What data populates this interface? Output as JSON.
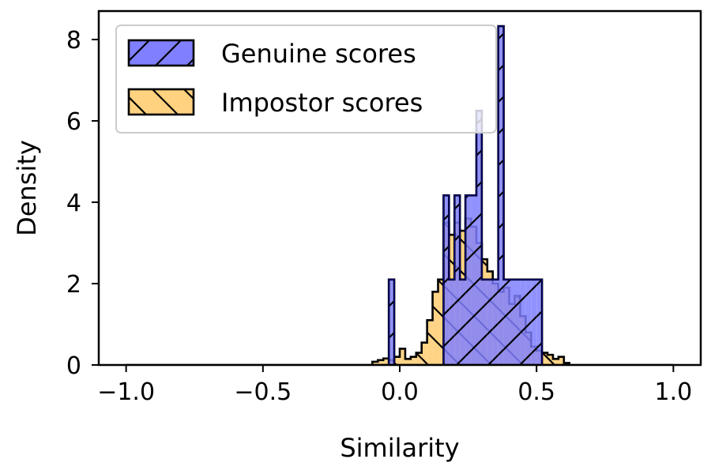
{
  "chart_data": {
    "type": "histogram",
    "title": "",
    "xlabel": "Similarity",
    "ylabel": "Density",
    "xlim": [
      -1.1,
      1.1
    ],
    "ylim": [
      0,
      8.7
    ],
    "xticks": [
      -1.0,
      -0.5,
      0.0,
      0.5,
      1.0
    ],
    "xtick_labels": [
      "−1.0",
      "−0.5",
      "0.0",
      "0.5",
      "1.0"
    ],
    "yticks": [
      0,
      2,
      4,
      6,
      8
    ],
    "ytick_labels": [
      "0",
      "2",
      "4",
      "6",
      "8"
    ],
    "grid": false,
    "legend_position": "top-left",
    "bin_width": 0.02,
    "series": [
      {
        "name": "Genuine scores",
        "color": "#7f7fff",
        "edge_color": "#00008b",
        "hatch": "forward-diagonal",
        "bins": [
          {
            "x0": -0.04,
            "value": 2.1
          },
          {
            "x0": 0.16,
            "value": 4.17
          },
          {
            "x0": 0.18,
            "value": 2.1
          },
          {
            "x0": 0.2,
            "value": 4.17
          },
          {
            "x0": 0.22,
            "value": 2.1
          },
          {
            "x0": 0.24,
            "value": 4.17
          },
          {
            "x0": 0.26,
            "value": 4.17
          },
          {
            "x0": 0.28,
            "value": 6.25
          },
          {
            "x0": 0.3,
            "value": 2.1
          },
          {
            "x0": 0.32,
            "value": 2.1
          },
          {
            "x0": 0.34,
            "value": 2.1
          },
          {
            "x0": 0.36,
            "value": 8.33
          },
          {
            "x0": 0.38,
            "value": 2.1
          },
          {
            "x0": 0.4,
            "value": 2.1
          },
          {
            "x0": 0.42,
            "value": 2.1
          },
          {
            "x0": 0.44,
            "value": 2.1
          },
          {
            "x0": 0.46,
            "value": 2.1
          },
          {
            "x0": 0.48,
            "value": 2.1
          },
          {
            "x0": 0.5,
            "value": 2.1
          }
        ]
      },
      {
        "name": "Impostor scores",
        "color": "#ffd280",
        "edge_color": "#000000",
        "hatch": "back-diagonal",
        "bins": [
          {
            "x0": -0.1,
            "value": 0.08
          },
          {
            "x0": -0.08,
            "value": 0.12
          },
          {
            "x0": -0.06,
            "value": 0.16
          },
          {
            "x0": -0.04,
            "value": 0.12
          },
          {
            "x0": -0.02,
            "value": 0.2
          },
          {
            "x0": 0.0,
            "value": 0.4
          },
          {
            "x0": 0.02,
            "value": 0.15
          },
          {
            "x0": 0.04,
            "value": 0.2
          },
          {
            "x0": 0.06,
            "value": 0.3
          },
          {
            "x0": 0.08,
            "value": 0.55
          },
          {
            "x0": 0.1,
            "value": 1.1
          },
          {
            "x0": 0.12,
            "value": 1.8
          },
          {
            "x0": 0.14,
            "value": 2.1
          },
          {
            "x0": 0.16,
            "value": 3.5
          },
          {
            "x0": 0.18,
            "value": 3.2
          },
          {
            "x0": 0.2,
            "value": 3.5
          },
          {
            "x0": 0.22,
            "value": 3.3
          },
          {
            "x0": 0.24,
            "value": 3.6
          },
          {
            "x0": 0.26,
            "value": 3.4
          },
          {
            "x0": 0.28,
            "value": 3.0
          },
          {
            "x0": 0.3,
            "value": 2.6
          },
          {
            "x0": 0.32,
            "value": 2.3
          },
          {
            "x0": 0.34,
            "value": 2.0
          },
          {
            "x0": 0.36,
            "value": 1.8
          },
          {
            "x0": 0.38,
            "value": 1.9
          },
          {
            "x0": 0.4,
            "value": 1.5
          },
          {
            "x0": 0.42,
            "value": 1.7
          },
          {
            "x0": 0.44,
            "value": 1.2
          },
          {
            "x0": 0.46,
            "value": 0.8
          },
          {
            "x0": 0.48,
            "value": 0.45
          },
          {
            "x0": 0.5,
            "value": 0.35
          },
          {
            "x0": 0.52,
            "value": 0.3
          },
          {
            "x0": 0.54,
            "value": 0.25
          },
          {
            "x0": 0.56,
            "value": 0.15
          },
          {
            "x0": 0.58,
            "value": 0.2
          },
          {
            "x0": 0.6,
            "value": 0.05
          }
        ]
      }
    ]
  }
}
